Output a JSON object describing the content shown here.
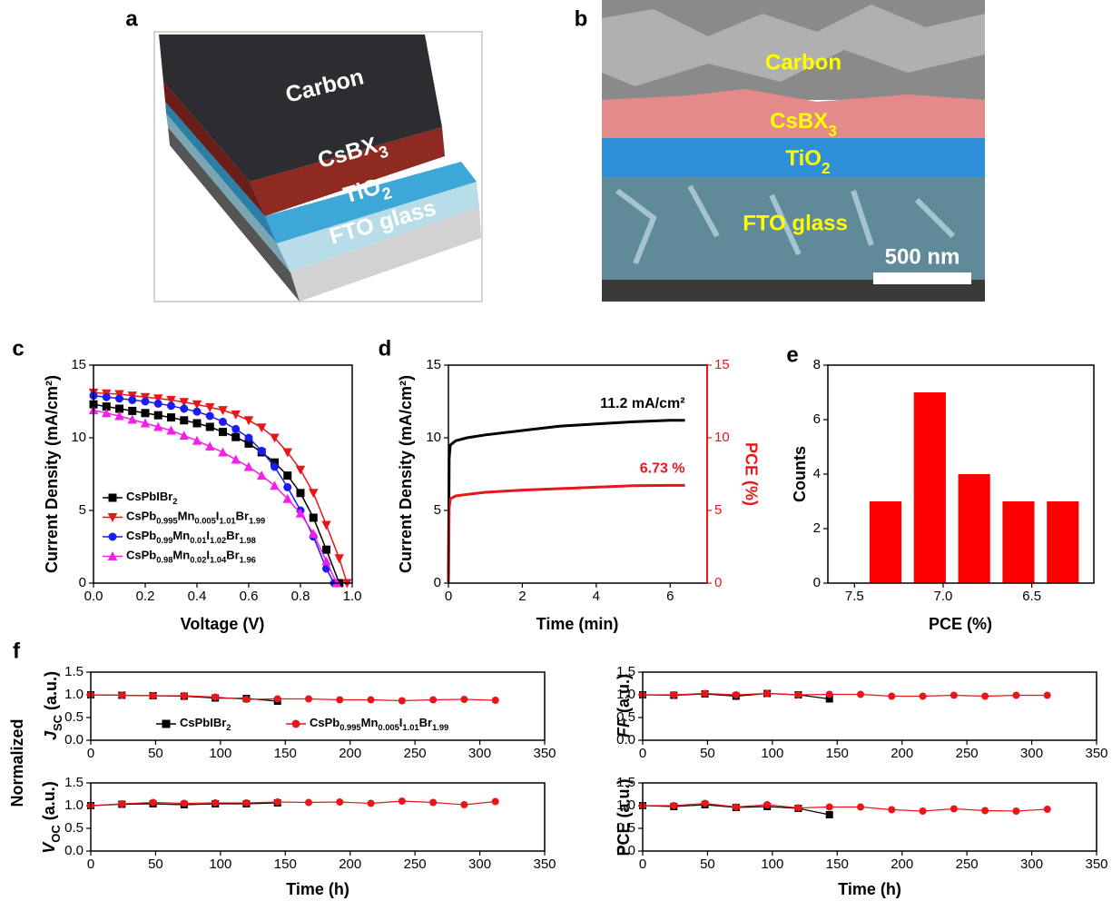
{
  "panel_labels": [
    "a",
    "b",
    "c",
    "d",
    "e",
    "f"
  ],
  "schematic": {
    "layers": [
      "Carbon",
      "CsBX3",
      "TiO2",
      "FTO glass"
    ]
  },
  "sem_image": {
    "labels": [
      "Carbon",
      "CsBX3",
      "TiO2",
      "FTO glass"
    ],
    "scale_bar": "500 nm"
  },
  "shared_ylabel": "Normalized",
  "chart_data": [
    {
      "type": "line",
      "xlabel": "Voltage (V)",
      "ylabel": "Current Density (mA/cm²)",
      "xlim": [
        0,
        1
      ],
      "ylim": [
        0,
        15
      ],
      "xticks": [
        {
          "value": 0,
          "label": "0.0"
        },
        0.2,
        0.4,
        0.6,
        0.8,
        {
          "value": 1,
          "label": "1.0"
        }
      ],
      "yticks": [
        0,
        5,
        10,
        15
      ],
      "legend": "lower left",
      "series": [
        {
          "name": "CsPbIBr2",
          "color": "#000000",
          "marker": "square",
          "x": [
            0,
            0.05,
            0.1,
            0.15,
            0.2,
            0.25,
            0.3,
            0.35,
            0.4,
            0.45,
            0.5,
            0.55,
            0.6,
            0.65,
            0.7,
            0.75,
            0.8,
            0.85,
            0.9,
            0.95
          ],
          "values": [
            12.3,
            12.15,
            12.0,
            11.85,
            11.7,
            11.55,
            11.4,
            11.2,
            11.0,
            10.75,
            10.4,
            10.05,
            9.6,
            9.0,
            8.3,
            7.4,
            6.2,
            4.5,
            2.3,
            0
          ]
        },
        {
          "name": "CsPb0.995Mn0.005I1.01Br1.99",
          "color": "#e8161b",
          "marker": "triangle-down",
          "x": [
            0,
            0.05,
            0.1,
            0.15,
            0.2,
            0.25,
            0.3,
            0.35,
            0.4,
            0.45,
            0.5,
            0.55,
            0.6,
            0.65,
            0.7,
            0.75,
            0.8,
            0.85,
            0.9,
            0.95,
            0.98
          ],
          "values": [
            13.1,
            13.05,
            13.0,
            12.9,
            12.8,
            12.7,
            12.6,
            12.45,
            12.3,
            12.1,
            11.9,
            11.6,
            11.2,
            10.7,
            10.0,
            9.0,
            7.8,
            6.2,
            4.0,
            1.7,
            0
          ]
        },
        {
          "name": "CsPb0.99Mn0.01I1.02Br1.98",
          "color": "#1c1cf0",
          "marker": "circle",
          "x": [
            0,
            0.05,
            0.1,
            0.15,
            0.2,
            0.25,
            0.3,
            0.35,
            0.4,
            0.45,
            0.5,
            0.55,
            0.6,
            0.65,
            0.7,
            0.75,
            0.8,
            0.85,
            0.9,
            0.93
          ],
          "values": [
            12.9,
            12.8,
            12.7,
            12.6,
            12.5,
            12.35,
            12.2,
            12.0,
            11.8,
            11.5,
            11.1,
            10.6,
            10.0,
            9.1,
            8.0,
            6.6,
            5.0,
            3.2,
            1.0,
            0
          ]
        },
        {
          "name": "CsPb0.98Mn0.02I1.04Br1.96",
          "color": "#f51fe6",
          "marker": "triangle-up",
          "x": [
            0,
            0.05,
            0.1,
            0.15,
            0.2,
            0.25,
            0.3,
            0.35,
            0.4,
            0.45,
            0.5,
            0.55,
            0.6,
            0.65,
            0.7,
            0.75,
            0.8,
            0.85,
            0.9,
            0.94
          ],
          "values": [
            11.9,
            11.7,
            11.5,
            11.25,
            11.0,
            10.75,
            10.5,
            10.15,
            9.8,
            9.4,
            9.0,
            8.5,
            8.0,
            7.4,
            6.7,
            5.8,
            4.8,
            3.4,
            1.5,
            0
          ]
        }
      ]
    },
    {
      "type": "line",
      "xlabel": "Time (min)",
      "ylabel": "Current Density (mA/cm²)",
      "y2label": "PCE (%)",
      "xlim": [
        0,
        7
      ],
      "ylim": [
        0,
        15
      ],
      "y2lim": [
        0,
        15
      ],
      "xticks": [
        0,
        2,
        4,
        6
      ],
      "yticks": [
        0,
        5,
        10,
        15
      ],
      "y2ticks": [
        0,
        5,
        10,
        15
      ],
      "x": [
        0,
        0.02,
        0.05,
        0.2,
        0.5,
        1,
        2,
        3,
        4,
        5,
        6,
        6.4
      ],
      "series": [
        {
          "color": "#000000",
          "values": [
            0,
            8.6,
            9.5,
            9.8,
            10.0,
            10.2,
            10.5,
            10.8,
            10.95,
            11.1,
            11.2,
            11.2
          ],
          "annotation": "11.2 mA/cm²"
        },
        {
          "color": "#e8161b",
          "axis": "y2",
          "values": [
            0,
            5.2,
            5.8,
            6.0,
            6.1,
            6.25,
            6.4,
            6.5,
            6.6,
            6.7,
            6.73,
            6.73
          ],
          "annotation": "6.73 %"
        }
      ]
    },
    {
      "type": "histogram",
      "xlabel": "PCE (%)",
      "ylabel": "Counts",
      "color": "#ff0000",
      "bins": [
        6.2,
        6.45,
        6.7,
        6.95,
        7.2,
        7.45
      ],
      "values": [
        3,
        3,
        4,
        7,
        3
      ],
      "xlim": [
        7.65,
        6.15
      ],
      "ylim": [
        0,
        8
      ],
      "xticks": [
        7.5,
        {
          "value": 7,
          "label": "7.0"
        },
        6.5
      ],
      "yticks": [
        0,
        2,
        4,
        6,
        8
      ]
    },
    {
      "type": "line",
      "ylabel": "JSC (a.u.)",
      "xlim": [
        0,
        350
      ],
      "ylim": [
        0,
        1.5
      ],
      "xticks": [
        0,
        50,
        100,
        150,
        200,
        250,
        300,
        350
      ],
      "yticks": [
        {
          "value": 0,
          "label": "0.0"
        },
        0.5,
        {
          "value": 1,
          "label": "1.0"
        },
        1.5
      ],
      "legend": "lower center",
      "x": [
        0,
        24,
        48,
        72,
        96,
        120,
        144,
        168,
        192,
        216,
        240,
        264,
        288,
        312
      ],
      "series": [
        {
          "name": "CsPbIBr2",
          "color": "#000000",
          "marker": "square",
          "values": [
            1.0,
            0.99,
            0.98,
            0.97,
            0.93,
            0.92,
            0.86,
            null,
            null,
            null,
            null,
            null,
            null,
            null
          ]
        },
        {
          "name": "CsPb0.995Mn0.005I1.01Br1.99",
          "color": "#e8161b",
          "marker": "circle",
          "values": [
            1.0,
            0.99,
            0.98,
            0.98,
            0.95,
            0.9,
            0.91,
            0.91,
            0.89,
            0.89,
            0.87,
            0.89,
            0.9,
            0.88
          ]
        }
      ]
    },
    {
      "type": "line",
      "ylabel": "FF (a.u.)",
      "xlim": [
        0,
        350
      ],
      "ylim": [
        0,
        1.5
      ],
      "xticks": [
        0,
        50,
        100,
        150,
        200,
        250,
        300,
        350
      ],
      "yticks": [
        {
          "value": 0,
          "label": "0.0"
        },
        0.5,
        {
          "value": 1,
          "label": "1.0"
        },
        1.5
      ],
      "x": [
        0,
        24,
        48,
        72,
        96,
        120,
        144,
        168,
        192,
        216,
        240,
        264,
        288,
        312
      ],
      "series": [
        {
          "color": "#000000",
          "marker": "square",
          "values": [
            1.0,
            0.99,
            1.02,
            0.97,
            1.03,
            1.0,
            0.91,
            null,
            null,
            null,
            null,
            null,
            null,
            null
          ]
        },
        {
          "color": "#e8161b",
          "marker": "circle",
          "values": [
            1.0,
            1.0,
            1.03,
            1.0,
            1.03,
            1.0,
            1.01,
            1.01,
            0.97,
            0.97,
            0.99,
            0.97,
            0.99,
            0.99
          ]
        }
      ]
    },
    {
      "type": "line",
      "xlabel": "Time (h)",
      "ylabel": "VOC (a.u.)",
      "xlim": [
        0,
        350
      ],
      "ylim": [
        0,
        1.5
      ],
      "xticks": [
        0,
        50,
        100,
        150,
        200,
        250,
        300,
        350
      ],
      "yticks": [
        {
          "value": 0,
          "label": "0.0"
        },
        0.5,
        {
          "value": 1,
          "label": "1.0"
        },
        1.5
      ],
      "x": [
        0,
        24,
        48,
        72,
        96,
        120,
        144,
        168,
        192,
        216,
        240,
        264,
        288,
        312
      ],
      "series": [
        {
          "color": "#000000",
          "marker": "square",
          "values": [
            1.0,
            1.03,
            1.04,
            1.02,
            1.04,
            1.04,
            1.06,
            null,
            null,
            null,
            null,
            null,
            null,
            null
          ]
        },
        {
          "color": "#e8161b",
          "marker": "circle",
          "values": [
            1.0,
            1.04,
            1.07,
            1.05,
            1.06,
            1.06,
            1.08,
            1.07,
            1.08,
            1.05,
            1.1,
            1.07,
            1.02,
            1.09
          ]
        }
      ]
    },
    {
      "type": "line",
      "xlabel": "Time (h)",
      "ylabel": "PCE (a.u.)",
      "xlim": [
        0,
        350
      ],
      "ylim": [
        0,
        1.5
      ],
      "xticks": [
        0,
        50,
        100,
        150,
        200,
        250,
        300,
        350
      ],
      "yticks": [
        {
          "value": 0,
          "label": "0.0"
        },
        0.5,
        {
          "value": 1,
          "label": "1.0"
        },
        1.5
      ],
      "x": [
        0,
        24,
        48,
        72,
        96,
        120,
        144,
        168,
        192,
        216,
        240,
        264,
        288,
        312
      ],
      "series": [
        {
          "color": "#000000",
          "marker": "square",
          "values": [
            1.0,
            0.98,
            1.02,
            0.96,
            0.98,
            0.94,
            0.8,
            null,
            null,
            null,
            null,
            null,
            null,
            null
          ]
        },
        {
          "color": "#e8161b",
          "marker": "circle",
          "values": [
            1.0,
            1.0,
            1.05,
            0.97,
            1.02,
            0.95,
            0.97,
            0.97,
            0.91,
            0.88,
            0.93,
            0.89,
            0.88,
            0.92
          ]
        }
      ]
    }
  ]
}
